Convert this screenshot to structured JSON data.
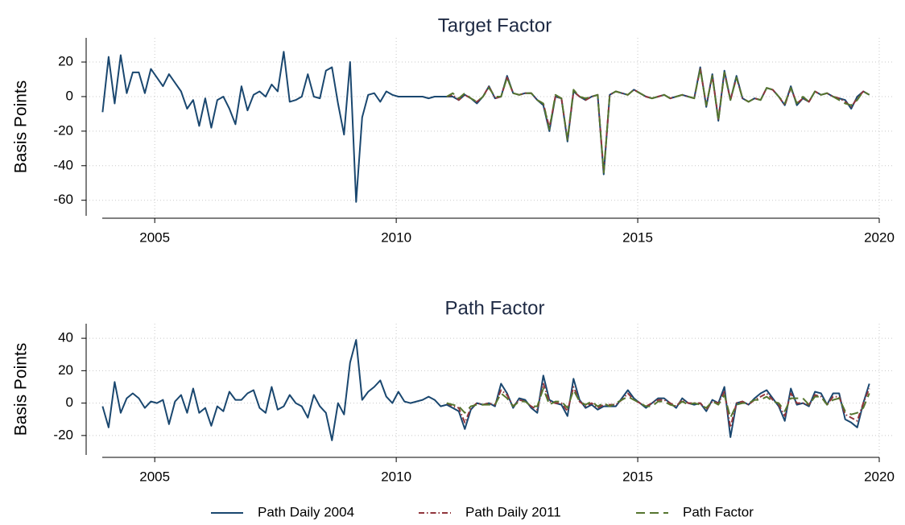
{
  "chart_data": [
    {
      "type": "line",
      "title": "Target Factor",
      "ylabel": "Basis Points",
      "x": [
        2003.92,
        2004.045,
        2004.17,
        2004.295,
        2004.42,
        2004.545,
        2004.67,
        2004.795,
        2004.92,
        2005.045,
        2005.17,
        2005.295,
        2005.42,
        2005.545,
        2005.67,
        2005.795,
        2005.92,
        2006.045,
        2006.17,
        2006.295,
        2006.42,
        2006.545,
        2006.67,
        2006.795,
        2006.92,
        2007.045,
        2007.17,
        2007.295,
        2007.42,
        2007.545,
        2007.67,
        2007.795,
        2007.92,
        2008.045,
        2008.17,
        2008.295,
        2008.42,
        2008.545,
        2008.67,
        2008.795,
        2008.92,
        2009.045,
        2009.17,
        2009.295,
        2009.42,
        2009.545,
        2009.67,
        2009.795,
        2009.92,
        2010.045,
        2010.17,
        2010.295,
        2010.42,
        2010.545,
        2010.67,
        2010.795,
        2010.92,
        2011.045,
        2011.17,
        2011.295,
        2011.42,
        2011.545,
        2011.67,
        2011.795,
        2011.92,
        2012.045,
        2012.17,
        2012.295,
        2012.42,
        2012.545,
        2012.67,
        2012.795,
        2012.92,
        2013.045,
        2013.17,
        2013.295,
        2013.42,
        2013.545,
        2013.67,
        2013.795,
        2013.92,
        2014.045,
        2014.17,
        2014.295,
        2014.42,
        2014.545,
        2014.67,
        2014.795,
        2014.92,
        2015.045,
        2015.17,
        2015.295,
        2015.42,
        2015.545,
        2015.67,
        2015.795,
        2015.92,
        2016.045,
        2016.17,
        2016.295,
        2016.42,
        2016.545,
        2016.67,
        2016.795,
        2016.92,
        2017.045,
        2017.17,
        2017.295,
        2017.42,
        2017.545,
        2017.67,
        2017.795,
        2017.92,
        2018.045,
        2018.17,
        2018.295,
        2018.42,
        2018.545,
        2018.67,
        2018.795,
        2018.92,
        2019.045,
        2019.17,
        2019.295,
        2019.42,
        2019.545,
        2019.67,
        2019.795
      ],
      "xlim": [
        2003.58,
        2020.3
      ],
      "xticks": [
        2005,
        2010,
        2015,
        2020
      ],
      "ylim": [
        -69,
        34
      ],
      "yticks": [
        -60,
        -40,
        -20,
        0,
        20
      ],
      "grid": true,
      "series": [
        {
          "color": "#1a476f",
          "dash": "solid",
          "values": [
            -9,
            23,
            -4,
            24,
            2,
            14,
            14,
            2,
            16,
            11,
            6,
            13,
            8,
            3,
            -7,
            -2,
            -17,
            -1,
            -18,
            -2,
            0,
            -7,
            -16,
            6,
            -8,
            1,
            3,
            0,
            7,
            3,
            26,
            -3,
            -2,
            0,
            13,
            0,
            -1,
            15,
            17,
            -4,
            -22,
            20,
            -61,
            -12,
            1,
            2,
            -3,
            3,
            1,
            0,
            0,
            0,
            0,
            0,
            -1,
            0,
            0,
            0,
            0,
            -2,
            1,
            -1,
            -4,
            0,
            6,
            -1,
            0,
            12,
            2,
            1,
            2,
            2,
            -2,
            -5,
            -20,
            0,
            -1,
            -26,
            3,
            0,
            -2,
            0,
            1,
            -45,
            1,
            3,
            2,
            1,
            4,
            2,
            0,
            -1,
            0,
            1,
            -1,
            0,
            1,
            0,
            -1,
            17,
            -6,
            13,
            -14,
            15,
            -2,
            12,
            -1,
            -3,
            -1,
            -2,
            5,
            4,
            0,
            -5,
            6,
            -5,
            -1,
            -3,
            3,
            1,
            2,
            0,
            -1,
            -2,
            -7,
            0,
            3,
            1
          ]
        },
        {
          "color": "#90353b",
          "dash": "dashdot",
          "values": [
            null,
            null,
            null,
            null,
            null,
            null,
            null,
            null,
            null,
            null,
            null,
            null,
            null,
            null,
            null,
            null,
            null,
            null,
            null,
            null,
            null,
            null,
            null,
            null,
            null,
            null,
            null,
            null,
            null,
            null,
            null,
            null,
            null,
            null,
            null,
            null,
            null,
            null,
            null,
            null,
            null,
            null,
            null,
            null,
            null,
            null,
            null,
            null,
            null,
            null,
            null,
            null,
            null,
            null,
            null,
            null,
            null,
            0,
            1,
            -2,
            1,
            -1,
            -3,
            0,
            6,
            -1,
            0,
            11,
            2,
            1,
            2,
            2,
            -2,
            -4,
            -18,
            0,
            -1,
            -25,
            3,
            0,
            -2,
            0,
            1,
            -44,
            1,
            3,
            2,
            1,
            4,
            2,
            0,
            -1,
            0,
            1,
            -1,
            0,
            1,
            0,
            -1,
            16,
            -5,
            12,
            -13,
            14,
            -2,
            11,
            -1,
            -3,
            -1,
            -2,
            5,
            4,
            0,
            -5,
            5,
            -4,
            -1,
            -3,
            3,
            1,
            2,
            0,
            -1,
            -3,
            -6,
            -1,
            3,
            1
          ]
        },
        {
          "color": "#55752f",
          "dash": "dashed",
          "values": [
            null,
            null,
            null,
            null,
            null,
            null,
            null,
            null,
            null,
            null,
            null,
            null,
            null,
            null,
            null,
            null,
            null,
            null,
            null,
            null,
            null,
            null,
            null,
            null,
            null,
            null,
            null,
            null,
            null,
            null,
            null,
            null,
            null,
            null,
            null,
            null,
            null,
            null,
            null,
            null,
            null,
            null,
            null,
            null,
            null,
            null,
            null,
            null,
            null,
            null,
            null,
            null,
            null,
            null,
            null,
            null,
            null,
            0,
            2,
            -1,
            2,
            -1,
            -3,
            0,
            5,
            0,
            0,
            11,
            2,
            1,
            2,
            2,
            -2,
            -4,
            -19,
            1,
            -1,
            -25,
            4,
            0,
            -1,
            0,
            1,
            -44,
            1,
            3,
            2,
            1,
            4,
            2,
            0,
            -1,
            0,
            1,
            -1,
            0,
            1,
            0,
            -1,
            16,
            -5,
            12,
            -14,
            14,
            -2,
            11,
            -1,
            -3,
            -1,
            -2,
            5,
            4,
            0,
            -4,
            5,
            -4,
            0,
            -3,
            3,
            1,
            2,
            0,
            -2,
            -4,
            -5,
            -2,
            3,
            1
          ]
        }
      ]
    },
    {
      "type": "line",
      "title": "Path Factor",
      "ylabel": "Basis Points",
      "x": [
        2003.92,
        2004.045,
        2004.17,
        2004.295,
        2004.42,
        2004.545,
        2004.67,
        2004.795,
        2004.92,
        2005.045,
        2005.17,
        2005.295,
        2005.42,
        2005.545,
        2005.67,
        2005.795,
        2005.92,
        2006.045,
        2006.17,
        2006.295,
        2006.42,
        2006.545,
        2006.67,
        2006.795,
        2006.92,
        2007.045,
        2007.17,
        2007.295,
        2007.42,
        2007.545,
        2007.67,
        2007.795,
        2007.92,
        2008.045,
        2008.17,
        2008.295,
        2008.42,
        2008.545,
        2008.67,
        2008.795,
        2008.92,
        2009.045,
        2009.17,
        2009.295,
        2009.42,
        2009.545,
        2009.67,
        2009.795,
        2009.92,
        2010.045,
        2010.17,
        2010.295,
        2010.42,
        2010.545,
        2010.67,
        2010.795,
        2010.92,
        2011.045,
        2011.17,
        2011.295,
        2011.42,
        2011.545,
        2011.67,
        2011.795,
        2011.92,
        2012.045,
        2012.17,
        2012.295,
        2012.42,
        2012.545,
        2012.67,
        2012.795,
        2012.92,
        2013.045,
        2013.17,
        2013.295,
        2013.42,
        2013.545,
        2013.67,
        2013.795,
        2013.92,
        2014.045,
        2014.17,
        2014.295,
        2014.42,
        2014.545,
        2014.67,
        2014.795,
        2014.92,
        2015.045,
        2015.17,
        2015.295,
        2015.42,
        2015.545,
        2015.67,
        2015.795,
        2015.92,
        2016.045,
        2016.17,
        2016.295,
        2016.42,
        2016.545,
        2016.67,
        2016.795,
        2016.92,
        2017.045,
        2017.17,
        2017.295,
        2017.42,
        2017.545,
        2017.67,
        2017.795,
        2017.92,
        2018.045,
        2018.17,
        2018.295,
        2018.42,
        2018.545,
        2018.67,
        2018.795,
        2018.92,
        2019.045,
        2019.17,
        2019.295,
        2019.42,
        2019.545,
        2019.67,
        2019.795
      ],
      "xlim": [
        2003.58,
        2020.3
      ],
      "xticks": [
        2005,
        2010,
        2015,
        2020
      ],
      "ylim": [
        -32,
        49
      ],
      "yticks": [
        -20,
        0,
        20,
        40
      ],
      "grid": true,
      "series": [
        {
          "name": "Path Daily 2004",
          "color": "#1a476f",
          "dash": "solid",
          "values": [
            -2,
            -15,
            13,
            -6,
            3,
            6,
            3,
            -3,
            1,
            0,
            2,
            -13,
            1,
            5,
            -6,
            9,
            -6,
            -3,
            -14,
            -2,
            -5,
            7,
            2,
            2,
            6,
            8,
            -3,
            -6,
            10,
            -4,
            -2,
            5,
            0,
            -2,
            -9,
            5,
            -2,
            -6,
            -23,
            0,
            -7,
            25,
            39,
            2,
            7,
            10,
            14,
            4,
            0,
            7,
            1,
            0,
            1,
            2,
            4,
            2,
            -2,
            -1,
            -3,
            -5,
            -16,
            -4,
            0,
            -1,
            0,
            -2,
            12,
            6,
            -3,
            3,
            2,
            -3,
            -6,
            17,
            2,
            0,
            -1,
            -8,
            15,
            2,
            -3,
            -1,
            -4,
            -2,
            -2,
            -2,
            3,
            8,
            3,
            0,
            -3,
            0,
            3,
            3,
            0,
            -3,
            3,
            0,
            -1,
            0,
            -5,
            2,
            0,
            10,
            -21,
            0,
            1,
            -1,
            3,
            6,
            8,
            3,
            -2,
            -11,
            9,
            -1,
            0,
            -2,
            7,
            6,
            -1,
            6,
            6,
            -10,
            -12,
            -15,
            0,
            12
          ]
        },
        {
          "name": "Path Daily 2011",
          "color": "#90353b",
          "dash": "dashdot",
          "values": [
            null,
            null,
            null,
            null,
            null,
            null,
            null,
            null,
            null,
            null,
            null,
            null,
            null,
            null,
            null,
            null,
            null,
            null,
            null,
            null,
            null,
            null,
            null,
            null,
            null,
            null,
            null,
            null,
            null,
            null,
            null,
            null,
            null,
            null,
            null,
            null,
            null,
            null,
            null,
            null,
            null,
            null,
            null,
            null,
            null,
            null,
            null,
            null,
            null,
            null,
            null,
            null,
            null,
            null,
            null,
            null,
            null,
            0,
            -2,
            -3,
            -12,
            -3,
            0,
            -1,
            0,
            -1,
            8,
            5,
            -2,
            2,
            1,
            -2,
            -4,
            12,
            1,
            0,
            0,
            -5,
            10,
            1,
            -2,
            0,
            -3,
            -1,
            -1,
            -1,
            2,
            6,
            2,
            0,
            -2,
            0,
            2,
            2,
            0,
            -2,
            2,
            0,
            0,
            0,
            -4,
            1,
            0,
            7,
            -15,
            0,
            1,
            -1,
            2,
            4,
            6,
            2,
            -1,
            -8,
            6,
            0,
            0,
            -1,
            5,
            4,
            -1,
            4,
            4,
            -7,
            -9,
            -11,
            0,
            9
          ]
        },
        {
          "name": "Path Factor",
          "color": "#55752f",
          "dash": "dashed",
          "values": [
            null,
            null,
            null,
            null,
            null,
            null,
            null,
            null,
            null,
            null,
            null,
            null,
            null,
            null,
            null,
            null,
            null,
            null,
            null,
            null,
            null,
            null,
            null,
            null,
            null,
            null,
            null,
            null,
            null,
            null,
            null,
            null,
            null,
            null,
            null,
            null,
            null,
            null,
            null,
            null,
            null,
            null,
            null,
            null,
            null,
            null,
            null,
            null,
            null,
            null,
            null,
            null,
            null,
            null,
            null,
            null,
            null,
            0,
            -1,
            -2,
            -6,
            -2,
            -1,
            -1,
            -1,
            -1,
            6,
            3,
            -2,
            1,
            1,
            -2,
            -2,
            9,
            -1,
            1,
            1,
            -3,
            8,
            1,
            -1,
            1,
            -2,
            0,
            -2,
            0,
            2,
            4,
            2,
            0,
            -2,
            -2,
            1,
            1,
            -1,
            -2,
            1,
            -1,
            0,
            -1,
            -3,
            1,
            -1,
            5,
            -9,
            -1,
            0,
            0,
            2,
            2,
            4,
            1,
            0,
            -5,
            3,
            3,
            3,
            -1,
            4,
            4,
            -1,
            2,
            3,
            -5,
            -7,
            -6,
            -3,
            6
          ]
        }
      ]
    }
  ]
}
